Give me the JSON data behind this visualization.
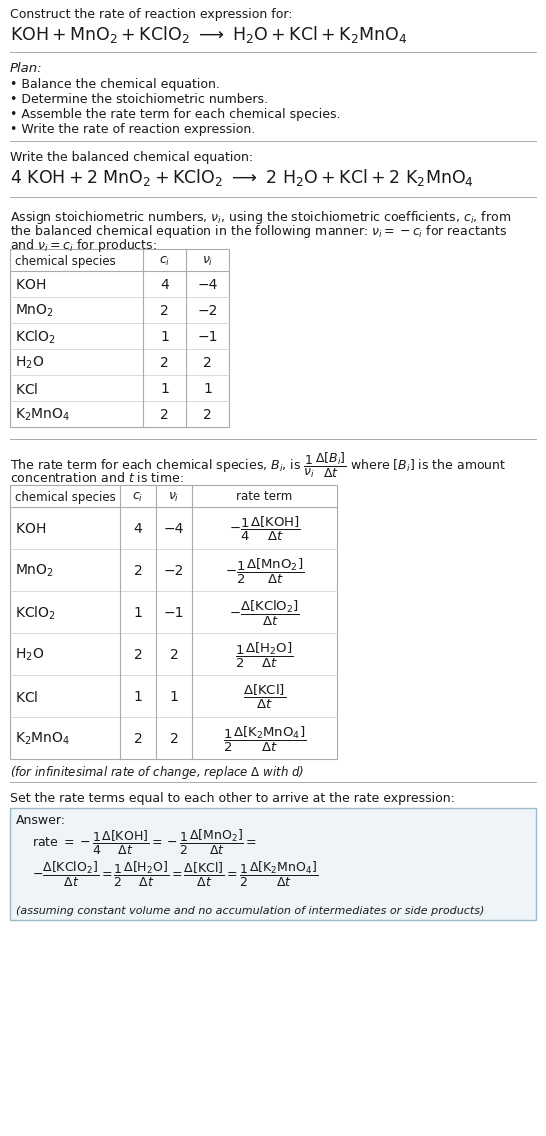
{
  "bg_color": "#ffffff",
  "text_color": "#1a1a1a",
  "line_color": "#aaaaaa",
  "table_border": "#aaaaaa",
  "table_row_sep": "#cccccc",
  "answer_bg": "#eef4f8",
  "answer_border": "#99bbcc",
  "title_line1": "Construct the rate of reaction expression for:",
  "plan_header": "Plan:",
  "plan_items": [
    "• Balance the chemical equation.",
    "• Determine the stoichiometric numbers.",
    "• Assemble the rate term for each chemical species.",
    "• Write the rate of reaction expression."
  ],
  "balanced_header": "Write the balanced chemical equation:",
  "table1_headers": [
    "chemical species",
    "c_i",
    "v_i"
  ],
  "table1_rows": [
    [
      "KOH",
      "4",
      "−4"
    ],
    [
      "MnO_2",
      "2",
      "−2"
    ],
    [
      "KClO_2",
      "1",
      "−1"
    ],
    [
      "H_2O",
      "2",
      "2"
    ],
    [
      "KCl",
      "1",
      "1"
    ],
    [
      "K_2MnO_4",
      "2",
      "2"
    ]
  ],
  "table2_rows": [
    [
      "KOH",
      "4",
      "−4"
    ],
    [
      "MnO_2",
      "2",
      "−2"
    ],
    [
      "KClO_2",
      "1",
      "−1"
    ],
    [
      "H_2O",
      "2",
      "2"
    ],
    [
      "KCl",
      "1",
      "1"
    ],
    [
      "K_2MnO_4",
      "2",
      "2"
    ]
  ]
}
